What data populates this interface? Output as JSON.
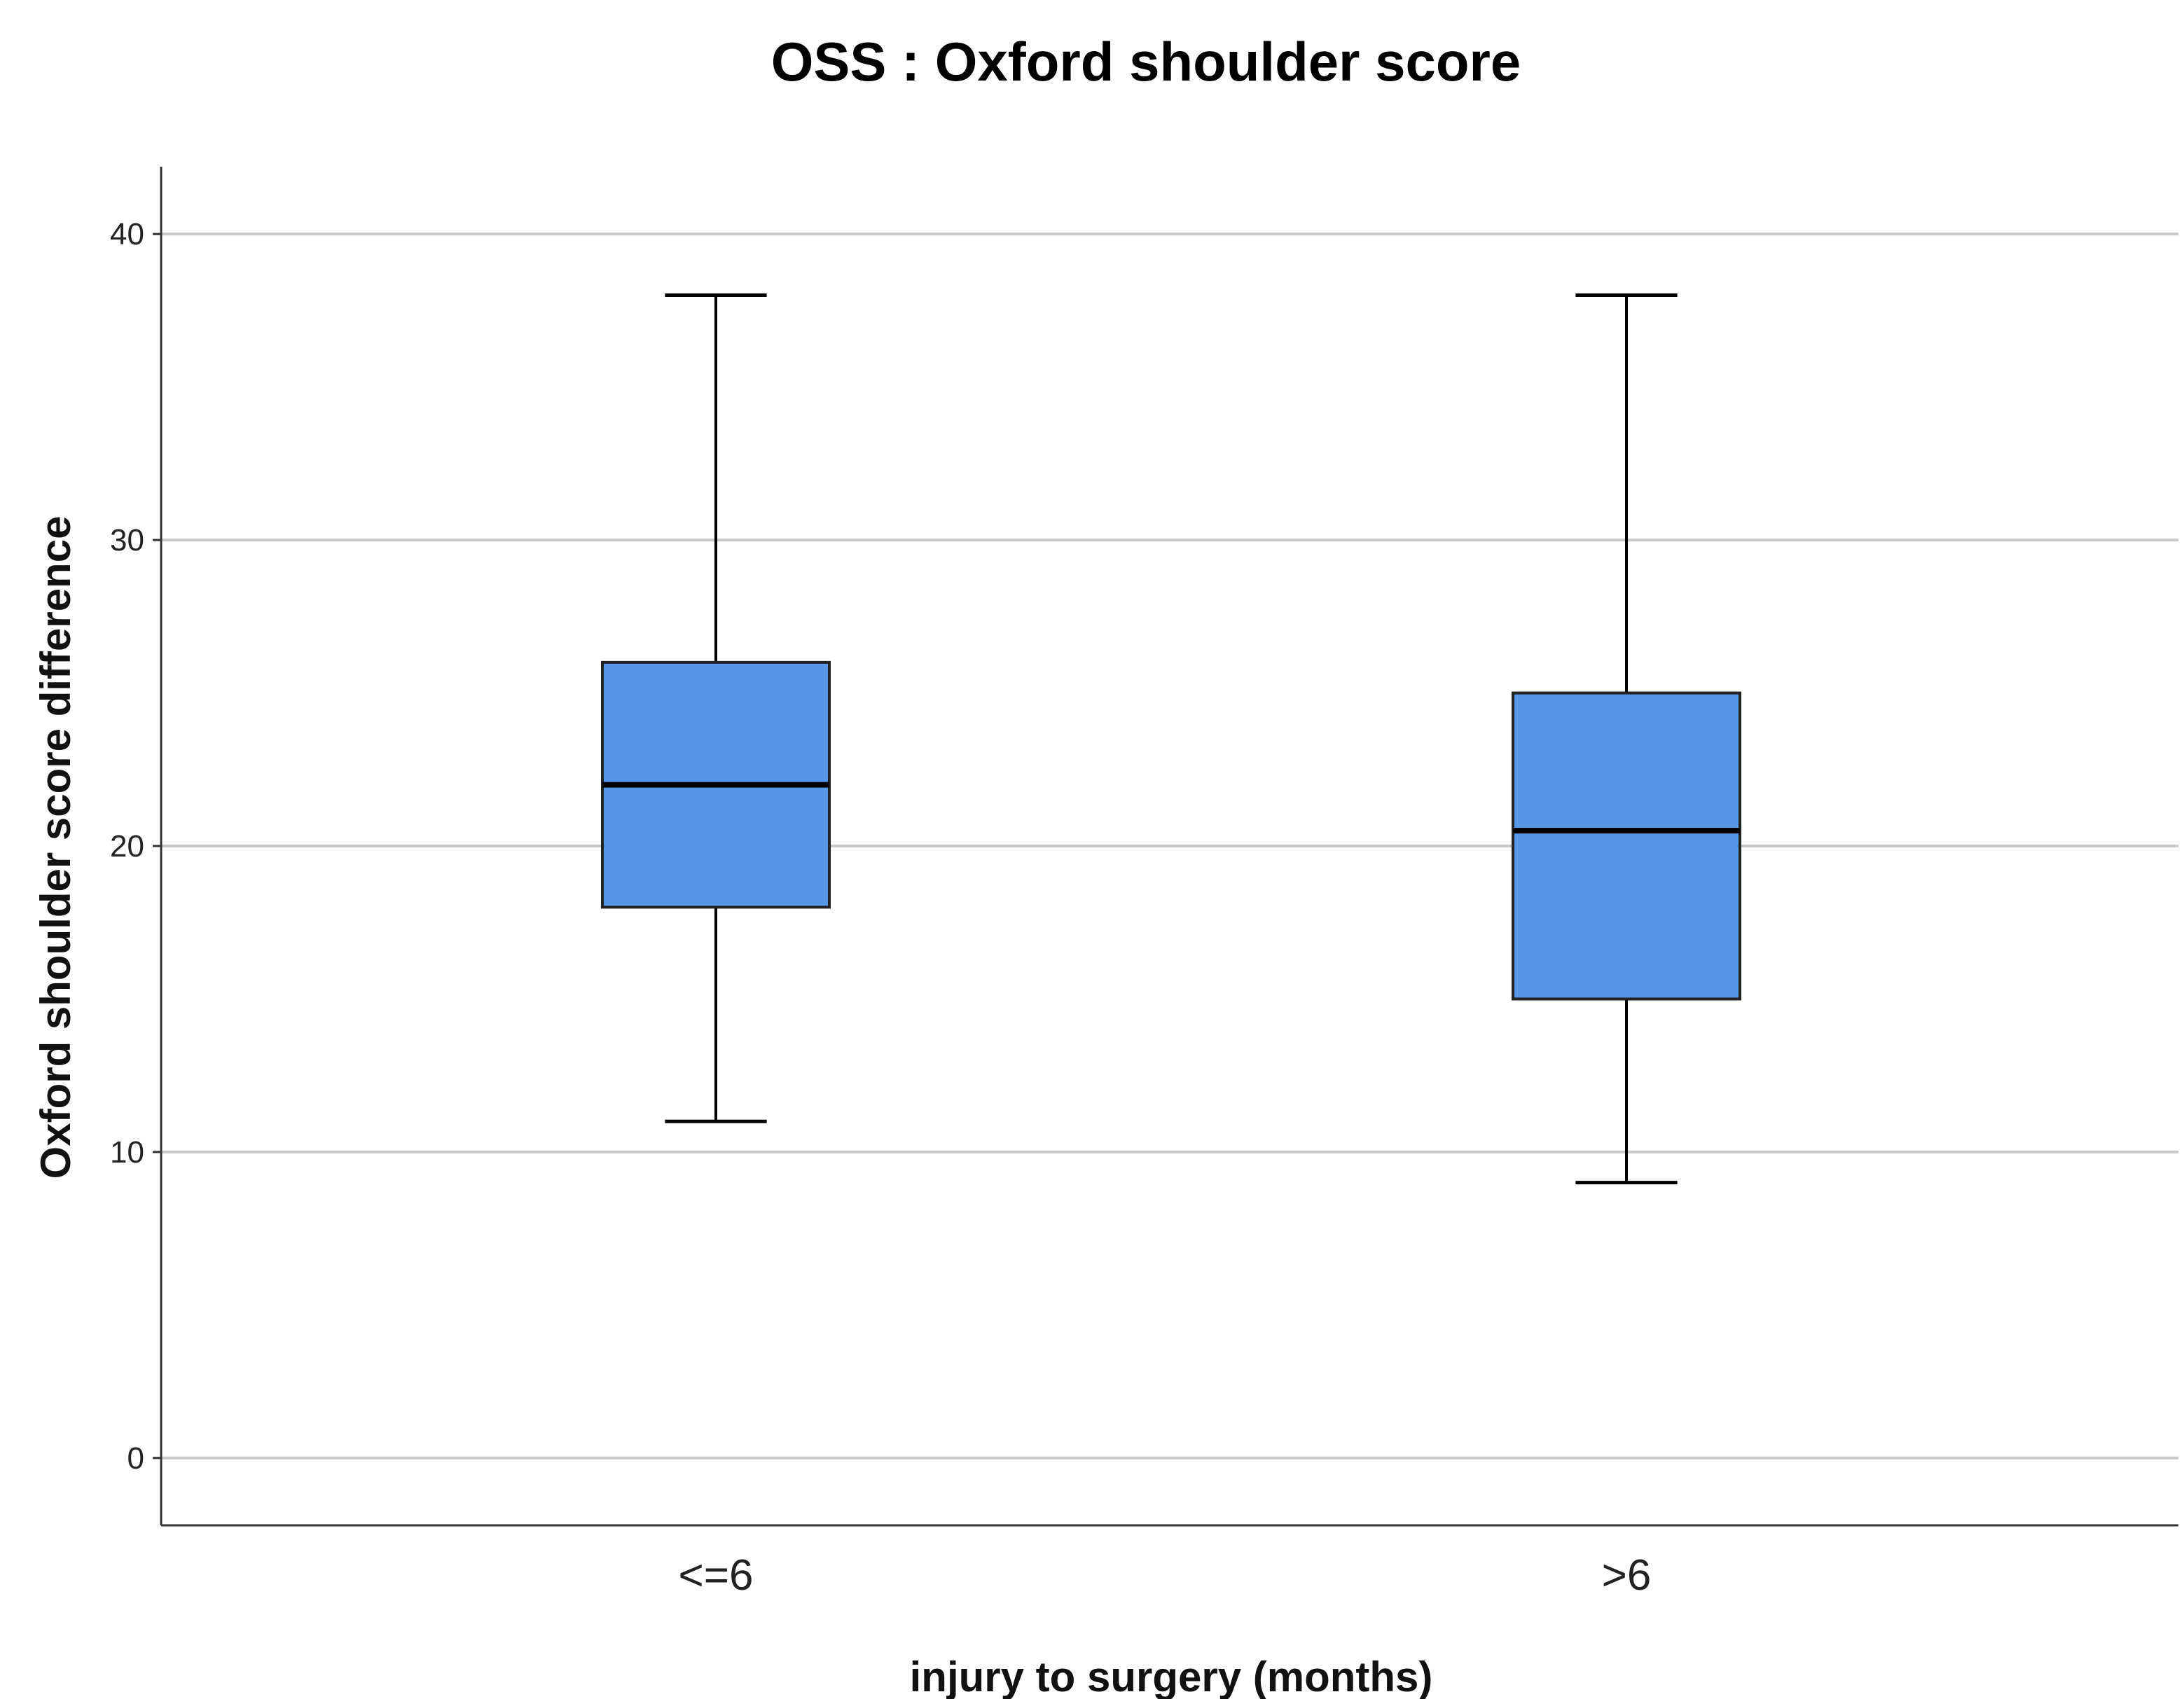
{
  "chart_data": {
    "type": "box",
    "title": "OSS : Oxford shoulder score",
    "xlabel": "injury to surgery (months)",
    "ylabel": "Oxford shoulder score  difference",
    "ylim": [
      -2.2,
      42.2
    ],
    "yticks": [
      0,
      10,
      20,
      30,
      40
    ],
    "grid": true,
    "box_color": "#5596e6",
    "categories": [
      "<=6",
      ">6"
    ],
    "boxes": [
      {
        "category": "<=6",
        "whisker_low": 11,
        "q1": 18,
        "median": 22,
        "q3": 26,
        "whisker_high": 38
      },
      {
        "category": ">6",
        "whisker_low": 9,
        "q1": 15,
        "median": 20.5,
        "q3": 25,
        "whisker_high": 38
      }
    ]
  }
}
